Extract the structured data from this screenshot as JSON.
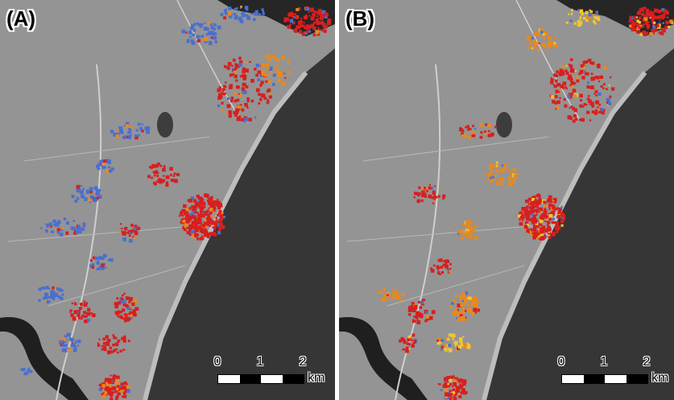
{
  "panels": [
    {
      "label": "(A)",
      "legend_colors": [
        "#d81f1f",
        "#4a6fd0",
        "#e8891f"
      ]
    },
    {
      "label": "(B)",
      "legend_colors": [
        "#d81f1f",
        "#4a6fd0",
        "#e8891f",
        "#f0c630"
      ]
    }
  ],
  "scale_bar": {
    "ticks": [
      "0",
      "1",
      "2"
    ],
    "unit": "km"
  },
  "colors": {
    "land": "#9b9b9b",
    "sea": "#3a3a3a",
    "river": "#1e1e1e",
    "red_change": "#d81f1f",
    "blue_change": "#4a6fd0",
    "orange_change": "#e8891f",
    "yellow_change": "#f0c630"
  }
}
